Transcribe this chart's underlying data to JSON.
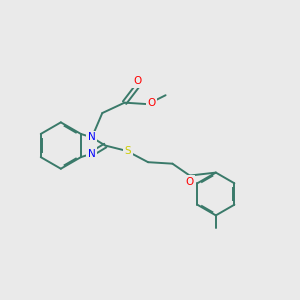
{
  "bg_color": "#eaeaea",
  "bond_color": "#3a7a6a",
  "n_color": "#0000ff",
  "o_color": "#ff0000",
  "s_color": "#cccc00",
  "line_width": 1.4,
  "figsize": [
    3.0,
    3.0
  ],
  "dpi": 100,
  "xlim": [
    0,
    10
  ],
  "ylim": [
    0,
    10
  ]
}
